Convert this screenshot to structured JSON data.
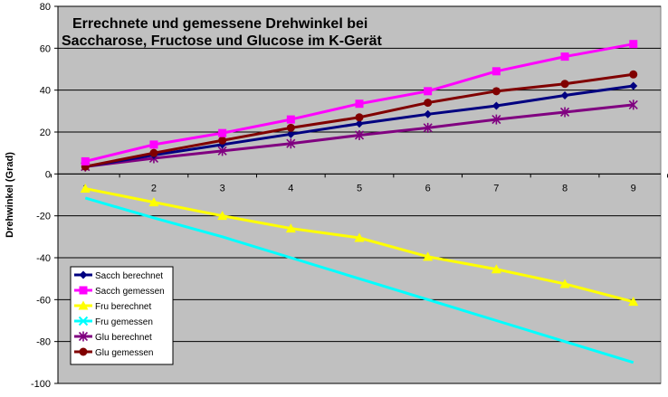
{
  "chart_data": {
    "type": "line",
    "title_lines": [
      "Errechnete und gemessene Drehwinkel bei",
      "Saccharose, Fructose und Glucose im K-Gerät"
    ],
    "xlabel": "",
    "ylabel": "Drehwinkel (Grad)",
    "x": [
      1,
      2,
      3,
      4,
      5,
      6,
      7,
      8,
      9
    ],
    "ylim": [
      -100,
      80
    ],
    "yticks": [
      80,
      60,
      40,
      20,
      0,
      -20,
      -40,
      -60,
      -80,
      -100
    ],
    "grid": true,
    "plot_background": "#c0c0c0",
    "legend_position": "lower-left",
    "series": [
      {
        "name": "Sacch berechnet",
        "color": "#000080",
        "marker": "diamond",
        "values": [
          3.5,
          9,
          14,
          19,
          24,
          28.5,
          32.5,
          37.5,
          42
        ]
      },
      {
        "name": "Sacch gemessen",
        "color": "#ff00ff",
        "marker": "square",
        "values": [
          6,
          14,
          19.5,
          26,
          33.5,
          39.5,
          49,
          56,
          62
        ]
      },
      {
        "name": "Fru berechnet",
        "color": "#ffff00",
        "marker": "triangle",
        "values": [
          -7,
          -13.5,
          -20,
          -26,
          -30.5,
          -39.5,
          -45.5,
          -52.5,
          -61
        ]
      },
      {
        "name": "Fru gemessen",
        "color": "#00ffff",
        "marker": "x",
        "values": [
          -11.5,
          -21,
          -30,
          -40,
          -50,
          -60,
          -70,
          -80,
          -90
        ]
      },
      {
        "name": "Glu berechnet",
        "color": "#800080",
        "marker": "star",
        "values": [
          3.5,
          7.5,
          11,
          14.5,
          18.5,
          22,
          26,
          29.5,
          33
        ]
      },
      {
        "name": "Glu gemessen",
        "color": "#800000",
        "marker": "circle",
        "values": [
          3.5,
          10,
          16,
          22,
          27,
          34,
          39.5,
          43,
          47.5
        ]
      }
    ]
  }
}
